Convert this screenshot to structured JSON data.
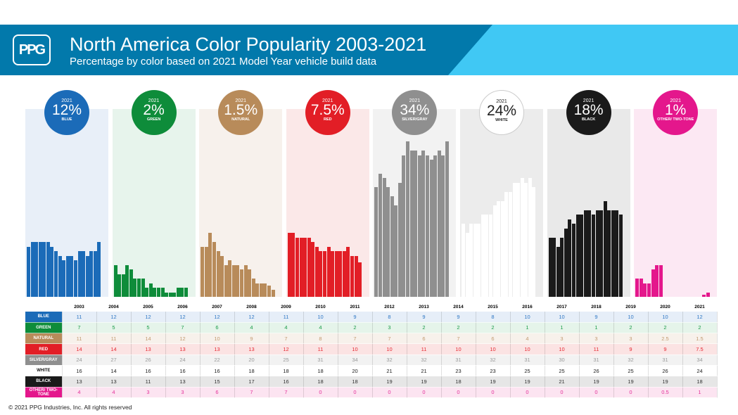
{
  "header": {
    "logo": "PPG",
    "title": "North America Color Popularity 2003-2021",
    "subtitle": "Percentage by color based on 2021 Model Year vehicle build data"
  },
  "footer": "© 2021 PPG Industries, Inc. All rights reserved",
  "chart_data": {
    "type": "bar",
    "title": "North America Color Popularity 2003-2021",
    "subtitle": "Percentage by color based on 2021 Model Year vehicle build data",
    "ylabel": "",
    "categories": [
      "2003",
      "2004",
      "2005",
      "2006",
      "2007",
      "2008",
      "2009",
      "2010",
      "2011",
      "2012",
      "2013",
      "2014",
      "2015",
      "2016",
      "2017",
      "2018",
      "2019",
      "2020",
      "2021"
    ],
    "highlight_year": "2021",
    "series": [
      {
        "name": "BLUE",
        "pct": "12%",
        "color": "#1b6bb8",
        "bg": "#e8eff8",
        "text": "#2f77c4",
        "rowbg": "#e6eef8",
        "values": [
          11,
          12,
          12,
          12,
          12,
          12,
          11,
          10,
          9,
          8,
          9,
          9,
          8,
          10,
          10,
          9,
          10,
          10,
          12
        ]
      },
      {
        "name": "GREEN",
        "pct": "2%",
        "color": "#0e8c3a",
        "bg": "#e7f4ec",
        "text": "#199a48",
        "rowbg": "#e5f4ea",
        "values": [
          7,
          5,
          5,
          7,
          6,
          4,
          4,
          4,
          2,
          3,
          2,
          2,
          2,
          1,
          1,
          1,
          2,
          2,
          2
        ]
      },
      {
        "name": "NATURAL",
        "pct": "1.5%",
        "color": "#b88b5a",
        "bg": "#f7f1ec",
        "text": "#c29a70",
        "rowbg": "#f7f1eb",
        "values": [
          11,
          11,
          14,
          12,
          10,
          9,
          7,
          8,
          7,
          7,
          6,
          7,
          6,
          4,
          3,
          3,
          3,
          2.5,
          1.5
        ]
      },
      {
        "name": "RED",
        "pct": "7.5%",
        "color": "#e21e26",
        "bg": "#fbe8e8",
        "text": "#e52a33",
        "rowbg": "#fbe3e3",
        "values": [
          14,
          14,
          13,
          13,
          13,
          13,
          12,
          11,
          10,
          10,
          11,
          10,
          10,
          10,
          10,
          11,
          9,
          9,
          7.5
        ]
      },
      {
        "name": "SILVER/GRAY",
        "pct": "34%",
        "color": "#8f8f8f",
        "bg": "#f2f2f2",
        "text": "#999999",
        "rowbg": "#f2f2f2",
        "values": [
          24,
          27,
          26,
          24,
          22,
          20,
          25,
          31,
          34,
          32,
          32,
          31,
          32,
          31,
          30,
          31,
          32,
          31,
          34
        ]
      },
      {
        "name": "WHITE",
        "pct": "24%",
        "color": "#ffffff",
        "bg": "#ececec",
        "text": "#222222",
        "rowbg": "#ffffff",
        "values": [
          16,
          14,
          16,
          16,
          16,
          18,
          18,
          18,
          20,
          21,
          21,
          23,
          23,
          25,
          25,
          26,
          25,
          26,
          24
        ]
      },
      {
        "name": "BLACK",
        "pct": "18%",
        "color": "#1a1a1a",
        "bg": "#e9e9e9",
        "text": "#333333",
        "rowbg": "#e6e6e6",
        "values": [
          13,
          13,
          11,
          13,
          15,
          17,
          16,
          18,
          18,
          19,
          19,
          18,
          19,
          19,
          21,
          19,
          19,
          19,
          18
        ]
      },
      {
        "name": "OTHER/ TWO-TONE",
        "pct": "1%",
        "color": "#e4178c",
        "bg": "#fce8f3",
        "text": "#e4309a",
        "rowbg": "#fce4f1",
        "values": [
          4,
          4,
          3,
          3,
          6,
          7,
          7,
          0,
          0,
          0,
          0,
          0,
          0,
          0,
          0,
          0,
          0,
          0.5,
          1
        ]
      }
    ]
  }
}
